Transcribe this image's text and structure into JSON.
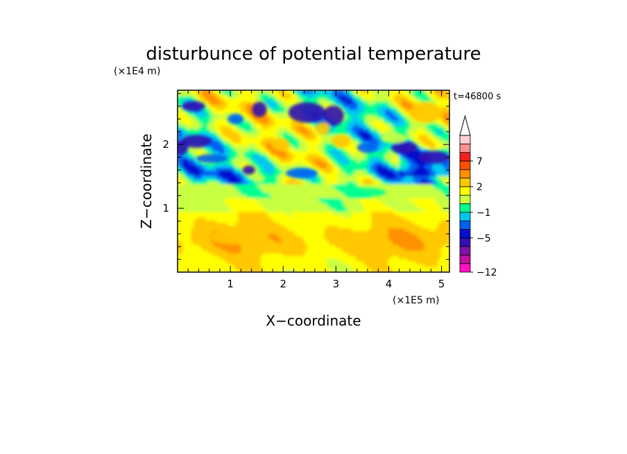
{
  "chart_data": {
    "type": "heatmap",
    "title": "disturbunce of potential temperature",
    "time_label": "t=46800 s",
    "xlabel": "X−coordinate",
    "ylabel": "Z−coordinate",
    "x_unit": "(×1E5 m)",
    "y_unit": "(×1E4 m)",
    "x_ticks": [
      "1",
      "2",
      "3",
      "4",
      "5"
    ],
    "y_ticks": [
      "1",
      "2"
    ],
    "xlim": [
      0,
      5.15
    ],
    "ylim": [
      0,
      2.85
    ],
    "colorbar": {
      "labels": [
        "7",
        "2",
        "−1",
        "−5",
        "−12"
      ],
      "levels": [
        -12,
        -10,
        -8,
        -6,
        -5,
        -3,
        -2,
        -1,
        0,
        1,
        2,
        3,
        5,
        7,
        8,
        10
      ],
      "colors": [
        "#ff10c0",
        "#c010a0",
        "#8010a8",
        "#3010b0",
        "#0010d0",
        "#0060f0",
        "#00c8f0",
        "#00ff90",
        "#c8ff40",
        "#ffff00",
        "#ffc800",
        "#ff9000",
        "#ff5000",
        "#f02020",
        "#ff9090",
        "#ffd0d0"
      ],
      "extend_max": true
    },
    "regions": {
      "below_1": "mostly yellow/orange, warm (+1 to +3)",
      "near_1.2": "green band near 0",
      "above_1.4": "alternating blue/cyan/yellow/orange wave patterns (-5 to +3)"
    }
  }
}
